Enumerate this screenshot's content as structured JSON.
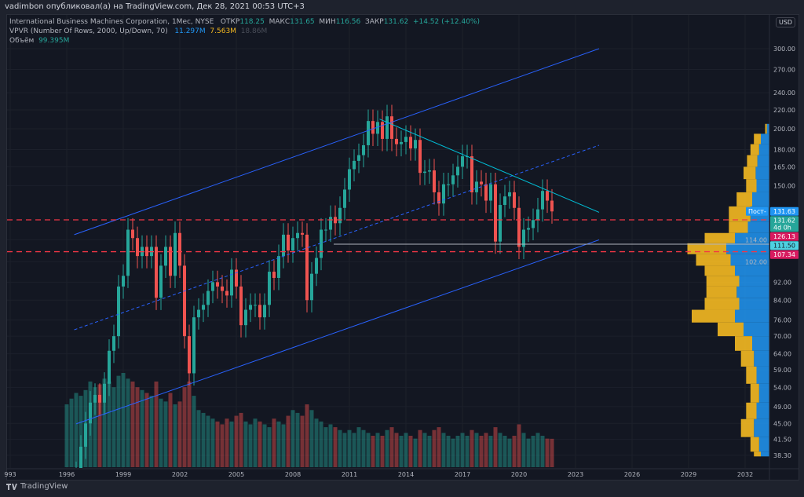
{
  "publisher_line": "vadimbon опубликовал(а) на TradingView.com, Дек 28, 2021 00:53 UTC+3",
  "legend": {
    "symbol": "International Business Machines Corporation, 1Мес, NYSE",
    "open_label": "ОТКР",
    "open": "118.25",
    "high_label": "МАКС",
    "high": "131.65",
    "low_label": "МИН",
    "low": "116.56",
    "close_label": "ЗАКР",
    "close": "131.62",
    "change": "+14.52 (+12.40%)",
    "vpvr_label": "VPVR (Number Of Rows, 2000, Up/Down, 70)",
    "vpvr_up": "11.297M",
    "vpvr_down": "7.563M",
    "vpvr_total": "18.86M",
    "volume_label": "Объём",
    "volume": "99.395M"
  },
  "currency": "USD",
  "footer_brand": "TradingView",
  "colors": {
    "up": "#26a69a",
    "down": "#ef5350",
    "channel": "#2962ff",
    "trend": "#00bcd4",
    "level": "#f23645",
    "vpvr_up": "#2196f3",
    "vpvr_down": "#f5b921"
  },
  "price_labels": [
    {
      "text": "131.63",
      "color": "#2196f3",
      "tag": "Пост-"
    },
    {
      "text": "131.62",
      "sub": "4d 0h",
      "color": "#26a69a",
      "price": 130.2
    },
    {
      "text": "126.13",
      "color": "#d81b60",
      "price": 123.2
    },
    {
      "text": "111.50",
      "color": "#4dd0e1",
      "textcolor": "#131722"
    },
    {
      "text": "107.34",
      "color": "#d81b60"
    }
  ],
  "chart_data": {
    "type": "candlestick",
    "interval": "quarterly approximation of monthly candles",
    "y_scale": "log",
    "ylim": [
      36,
      330
    ],
    "xlim": [
      1992.7,
      2033.3
    ],
    "y_ticks": [
      "300.00",
      "270.00",
      "240.00",
      "220.00",
      "200.00",
      "180.00",
      "165.00",
      "150.00",
      "114.00",
      "102.00",
      "92.00",
      "84.00",
      "76.00",
      "70.00",
      "64.00",
      "59.00",
      "54.00",
      "49.00",
      "45.00",
      "41.50",
      "38.30"
    ],
    "x_ticks": [
      "993",
      "1996",
      "1999",
      "2002",
      "2005",
      "2008",
      "2011",
      "2014",
      "2017",
      "2020",
      "2023",
      "2026",
      "2029",
      "2032"
    ],
    "start_year": 1996,
    "closes": [
      28,
      30,
      35,
      40,
      45,
      50,
      52,
      50,
      55,
      65,
      70,
      90,
      95,
      120,
      115,
      105,
      110,
      105,
      110,
      85,
      100,
      110,
      95,
      118,
      100,
      70,
      58,
      77,
      80,
      82,
      88,
      92,
      90,
      88,
      86,
      98,
      90,
      74,
      80,
      82,
      82,
      77,
      82,
      97,
      94,
      105,
      117,
      108,
      115,
      118,
      117,
      84,
      96,
      104,
      120,
      120,
      128,
      124,
      134,
      147,
      163,
      170,
      175,
      184,
      208,
      195,
      207,
      190,
      213,
      190,
      185,
      187,
      192,
      181,
      189,
      160,
      161,
      162,
      145,
      137,
      151,
      151,
      158,
      165,
      174,
      174,
      145,
      153,
      151,
      139,
      151,
      113,
      136,
      142,
      145,
      134,
      110,
      120,
      121,
      126,
      133,
      146,
      139,
      131.62
    ],
    "volumes_m": [
      220,
      240,
      260,
      250,
      270,
      300,
      280,
      290,
      310,
      300,
      280,
      320,
      330,
      310,
      300,
      280,
      270,
      260,
      250,
      300,
      240,
      230,
      260,
      220,
      230,
      280,
      300,
      250,
      200,
      190,
      180,
      170,
      160,
      150,
      170,
      160,
      180,
      190,
      160,
      150,
      170,
      160,
      150,
      140,
      170,
      160,
      150,
      180,
      200,
      190,
      180,
      220,
      200,
      170,
      160,
      140,
      150,
      140,
      130,
      120,
      130,
      120,
      140,
      130,
      120,
      110,
      120,
      110,
      130,
      140,
      120,
      110,
      120,
      110,
      100,
      130,
      120,
      110,
      130,
      140,
      120,
      110,
      100,
      110,
      120,
      110,
      130,
      120,
      110,
      120,
      110,
      140,
      120,
      110,
      100,
      110,
      150,
      120,
      100,
      110,
      120,
      110,
      100,
      99.395
    ],
    "vpvr": [
      [
        205,
        3,
        2
      ],
      [
        195,
        10,
        8
      ],
      [
        185,
        12,
        10
      ],
      [
        175,
        14,
        12
      ],
      [
        165,
        16,
        14
      ],
      [
        155,
        15,
        12
      ],
      [
        145,
        20,
        18
      ],
      [
        135,
        22,
        25
      ],
      [
        125,
        25,
        22
      ],
      [
        118,
        40,
        35
      ],
      [
        112,
        50,
        45
      ],
      [
        106,
        45,
        40
      ],
      [
        100,
        40,
        35
      ],
      [
        95,
        35,
        38
      ],
      [
        90,
        38,
        35
      ],
      [
        85,
        35,
        40
      ],
      [
        80,
        40,
        50
      ],
      [
        75,
        30,
        30
      ],
      [
        70,
        20,
        20
      ],
      [
        65,
        18,
        15
      ],
      [
        60,
        15,
        12
      ],
      [
        55,
        12,
        10
      ],
      [
        50,
        15,
        12
      ],
      [
        46,
        18,
        15
      ],
      [
        42,
        12,
        10
      ],
      [
        39,
        10,
        8
      ]
    ],
    "drawings": {
      "channel_upper": [
        [
          1996.4,
          117
        ],
        [
          2024.25,
          300
        ]
      ],
      "channel_mid": [
        [
          1996.4,
          72.3
        ],
        [
          2024.25,
          184
        ]
      ],
      "channel_lower": [
        [
          1996.5,
          44.9
        ],
        [
          2024.25,
          114
        ]
      ],
      "trendline": [
        [
          2012.6,
          210
        ],
        [
          2024.25,
          131
        ]
      ],
      "level_126": 126.13,
      "level_107": 107.34,
      "level_111": 111.5
    }
  }
}
